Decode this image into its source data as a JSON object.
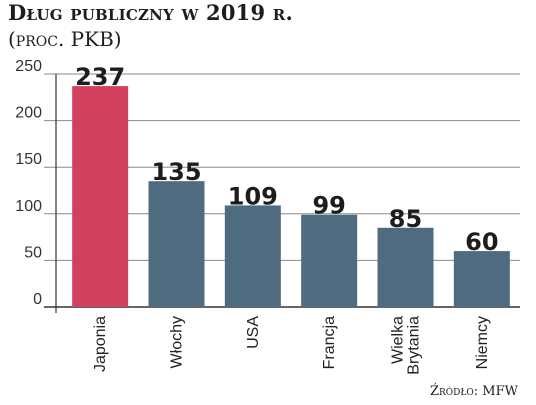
{
  "chart_data": {
    "type": "bar",
    "title": "Dług publiczny w 2019 r.",
    "subtitle": "(proc. PKB)",
    "categories": [
      "Japonia",
      "Włochy",
      "USA",
      "Francja",
      "Wielka Brytania",
      "Niemcy"
    ],
    "category_lines": [
      [
        "Japonia"
      ],
      [
        "Włochy"
      ],
      [
        "USA"
      ],
      [
        "Francja"
      ],
      [
        "Wielka",
        "Brytania"
      ],
      [
        "Niemcy"
      ]
    ],
    "values": [
      237,
      135,
      109,
      99,
      85,
      60
    ],
    "value_labels": [
      "237",
      "135",
      "109",
      "99",
      "85",
      "60"
    ],
    "yticks": [
      0,
      50,
      100,
      150,
      200,
      250
    ],
    "ylim": [
      0,
      250
    ],
    "xlabel": "",
    "ylabel": "",
    "grid": true,
    "colors": {
      "highlight": "#d1405d",
      "bar": "#4f6b80",
      "grid": "#8a8a8a",
      "axis": "#333333"
    },
    "highlight_index": 0,
    "source": "Źródło: MFW"
  }
}
